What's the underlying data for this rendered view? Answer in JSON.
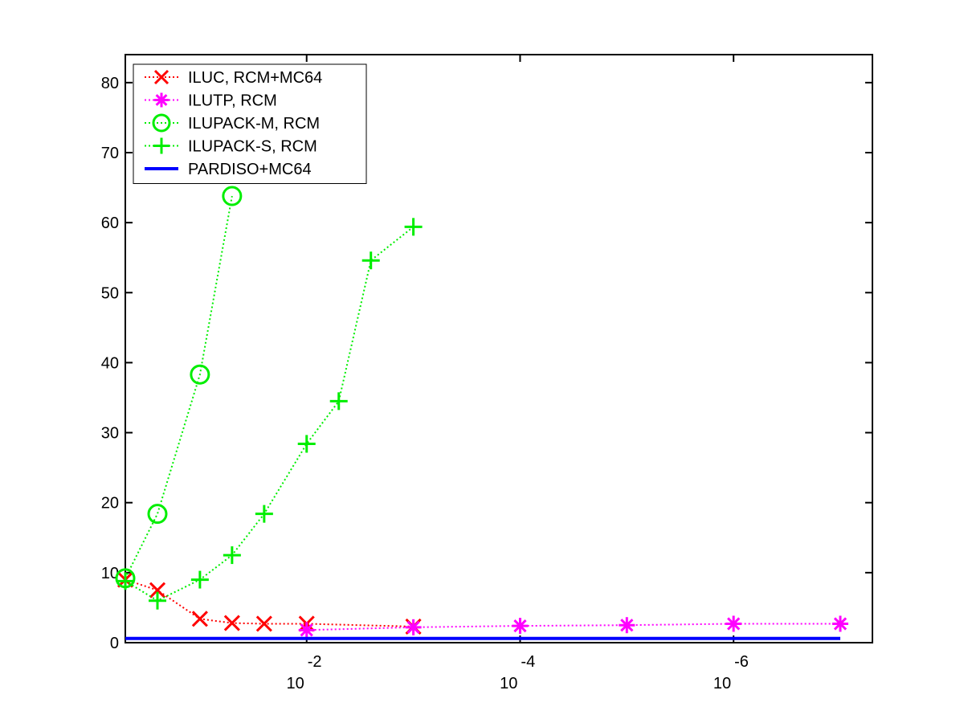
{
  "chart_data": {
    "type": "line",
    "title": "",
    "xlabel": "",
    "ylabel": "",
    "x_scale": "log-reversed",
    "x_tick_labels": [
      {
        "value": 0.01,
        "base": "10",
        "exponent": "-2"
      },
      {
        "value": 0.0001,
        "base": "10",
        "exponent": "-4"
      },
      {
        "value": 1e-06,
        "base": "10",
        "exponent": "-6"
      }
    ],
    "y_ticks": [
      0,
      10,
      20,
      30,
      40,
      50,
      60,
      70,
      80
    ],
    "xlim": [
      0.5,
      5e-08
    ],
    "ylim": [
      0,
      84
    ],
    "grid": false,
    "legend_position": "top-left",
    "series": [
      {
        "name": "ILUC, RCM+MC64",
        "color": "#ff0000",
        "marker": "x",
        "line_style": "dotted",
        "points": [
          [
            0.5,
            9.0
          ],
          [
            0.25,
            7.5
          ],
          [
            0.1,
            3.4
          ],
          [
            0.05,
            2.8
          ],
          [
            0.025,
            2.7
          ],
          [
            0.01,
            2.7
          ],
          [
            0.001,
            2.3
          ]
        ]
      },
      {
        "name": "ILUTP, RCM",
        "color": "#ff00ff",
        "marker": "*",
        "line_style": "dotted",
        "points": [
          [
            0.01,
            1.8
          ],
          [
            0.001,
            2.2
          ],
          [
            0.0001,
            2.4
          ],
          [
            1e-05,
            2.5
          ],
          [
            1e-06,
            2.7
          ],
          [
            1e-07,
            2.7
          ]
        ]
      },
      {
        "name": "ILUPACK-M, RCM",
        "color": "#00ee00",
        "marker": "o",
        "line_style": "dotted",
        "points": [
          [
            0.5,
            9.2
          ],
          [
            0.25,
            18.4
          ],
          [
            0.1,
            38.3
          ],
          [
            0.05,
            63.8
          ]
        ]
      },
      {
        "name": "ILUPACK-S, RCM",
        "color": "#00ee00",
        "marker": "+",
        "line_style": "dotted",
        "points": [
          [
            0.5,
            8.8
          ],
          [
            0.25,
            6.0
          ],
          [
            0.1,
            9.0
          ],
          [
            0.05,
            12.5
          ],
          [
            0.025,
            18.4
          ],
          [
            0.01,
            28.4
          ],
          [
            0.005,
            34.5
          ],
          [
            0.0025,
            54.6
          ],
          [
            0.001,
            59.4
          ]
        ]
      },
      {
        "name": "PARDISO+MC64",
        "color": "#0000ff",
        "marker": "none",
        "line_style": "solid",
        "points": [
          [
            0.5,
            0.6
          ],
          [
            1e-07,
            0.6
          ]
        ]
      }
    ]
  }
}
